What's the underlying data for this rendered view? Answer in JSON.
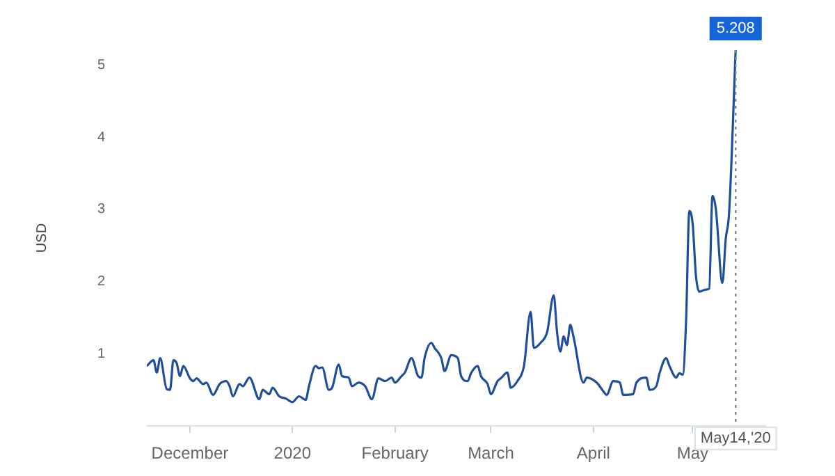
{
  "chart_data": {
    "type": "line",
    "ylabel": "USD",
    "x": [
      "2019-11-18",
      "2019-11-20",
      "2019-11-21",
      "2019-11-22",
      "2019-11-24",
      "2019-11-25",
      "2019-11-26",
      "2019-11-27",
      "2019-11-28",
      "2019-11-29",
      "2019-12-01",
      "2019-12-02",
      "2019-12-03",
      "2019-12-05",
      "2019-12-06",
      "2019-12-08",
      "2019-12-10",
      "2019-12-12",
      "2019-12-13",
      "2019-12-14",
      "2019-12-16",
      "2019-12-17",
      "2019-12-19",
      "2019-12-22",
      "2019-12-23",
      "2019-12-25",
      "2019-12-26",
      "2019-12-28",
      "2019-12-30",
      "2020-01-01",
      "2020-01-03",
      "2020-01-05",
      "2020-01-06",
      "2020-01-08",
      "2020-01-09",
      "2020-01-10",
      "2020-01-12",
      "2020-01-13",
      "2020-01-15",
      "2020-01-16",
      "2020-01-18",
      "2020-01-19",
      "2020-01-21",
      "2020-01-23",
      "2020-01-25",
      "2020-01-27",
      "2020-01-29",
      "2020-01-31",
      "2020-02-01",
      "2020-02-03",
      "2020-02-04",
      "2020-02-06",
      "2020-02-08",
      "2020-02-09",
      "2020-02-10",
      "2020-02-12",
      "2020-02-13",
      "2020-02-15",
      "2020-02-16",
      "2020-02-18",
      "2020-02-20",
      "2020-02-21",
      "2020-02-23",
      "2020-02-24",
      "2020-02-26",
      "2020-02-27",
      "2020-02-29",
      "2020-03-01",
      "2020-03-03",
      "2020-03-04",
      "2020-03-06",
      "2020-03-07",
      "2020-03-09",
      "2020-03-11",
      "2020-03-13",
      "2020-03-14",
      "2020-03-16",
      "2020-03-18",
      "2020-03-20",
      "2020-03-21",
      "2020-03-22",
      "2020-03-23",
      "2020-03-24",
      "2020-03-25",
      "2020-03-26",
      "2020-03-29",
      "2020-03-30",
      "2020-04-02",
      "2020-04-04",
      "2020-04-05",
      "2020-04-07",
      "2020-04-09",
      "2020-04-10",
      "2020-04-13",
      "2020-04-14",
      "2020-04-17",
      "2020-04-18",
      "2020-04-20",
      "2020-04-21",
      "2020-04-23",
      "2020-04-24",
      "2020-04-26",
      "2020-04-27",
      "2020-04-28",
      "2020-04-29",
      "2020-04-30",
      "2020-05-01",
      "2020-05-02",
      "2020-05-03",
      "2020-05-05",
      "2020-05-06",
      "2020-05-07",
      "2020-05-08",
      "2020-05-10",
      "2020-05-11",
      "2020-05-12",
      "2020-05-14"
    ],
    "series": [
      {
        "color": "#1f4e9c",
        "values": [
          0.83,
          0.91,
          0.74,
          0.94,
          0.51,
          0.5,
          0.91,
          0.87,
          0.69,
          0.83,
          0.66,
          0.62,
          0.66,
          0.58,
          0.6,
          0.43,
          0.58,
          0.62,
          0.55,
          0.41,
          0.58,
          0.55,
          0.67,
          0.37,
          0.5,
          0.44,
          0.53,
          0.41,
          0.38,
          0.33,
          0.41,
          0.36,
          0.55,
          0.83,
          0.8,
          0.81,
          0.5,
          0.53,
          0.85,
          0.69,
          0.67,
          0.55,
          0.6,
          0.55,
          0.37,
          0.66,
          0.62,
          0.67,
          0.6,
          0.69,
          0.74,
          0.94,
          0.69,
          0.67,
          0.95,
          1.15,
          1.08,
          0.94,
          0.76,
          0.98,
          0.94,
          0.69,
          0.62,
          0.73,
          0.83,
          0.69,
          0.58,
          0.44,
          0.62,
          0.66,
          0.74,
          0.53,
          0.62,
          0.83,
          1.58,
          1.08,
          1.15,
          1.3,
          1.81,
          1.3,
          1.03,
          1.24,
          1.12,
          1.4,
          1.23,
          0.6,
          0.67,
          0.6,
          0.48,
          0.43,
          0.62,
          0.6,
          0.43,
          0.44,
          0.6,
          0.67,
          0.5,
          0.55,
          0.73,
          0.94,
          0.83,
          0.67,
          0.73,
          0.71,
          1.44,
          2.98,
          2.8,
          2.08,
          1.86,
          1.89,
          1.9,
          3.19,
          3.01,
          1.98,
          2.59,
          2.94,
          5.208
        ]
      }
    ],
    "xlim": [
      "2019-11-18",
      "2020-05-23"
    ],
    "xticks": [
      {
        "value": "2019-12-01",
        "label": "December"
      },
      {
        "value": "2020-01-01",
        "label": "2020"
      },
      {
        "value": "2020-02-01",
        "label": "February"
      },
      {
        "value": "2020-03-01",
        "label": "March"
      },
      {
        "value": "2020-04-01",
        "label": "April"
      },
      {
        "value": "2020-05-01",
        "label": "May"
      }
    ],
    "ylim": [
      0,
      5.208
    ],
    "yticks": [
      1,
      2,
      3,
      4,
      5
    ],
    "ref_lines": [
      {
        "axis": "x",
        "value": "2020-05-14",
        "label": "May14,'20",
        "line_style": "dotted"
      }
    ],
    "annotations": [
      {
        "text": "5.208",
        "x": "2020-05-14",
        "y": 5.208
      }
    ],
    "grid": false,
    "legend": false,
    "marker": "none",
    "line_style": "solid"
  }
}
